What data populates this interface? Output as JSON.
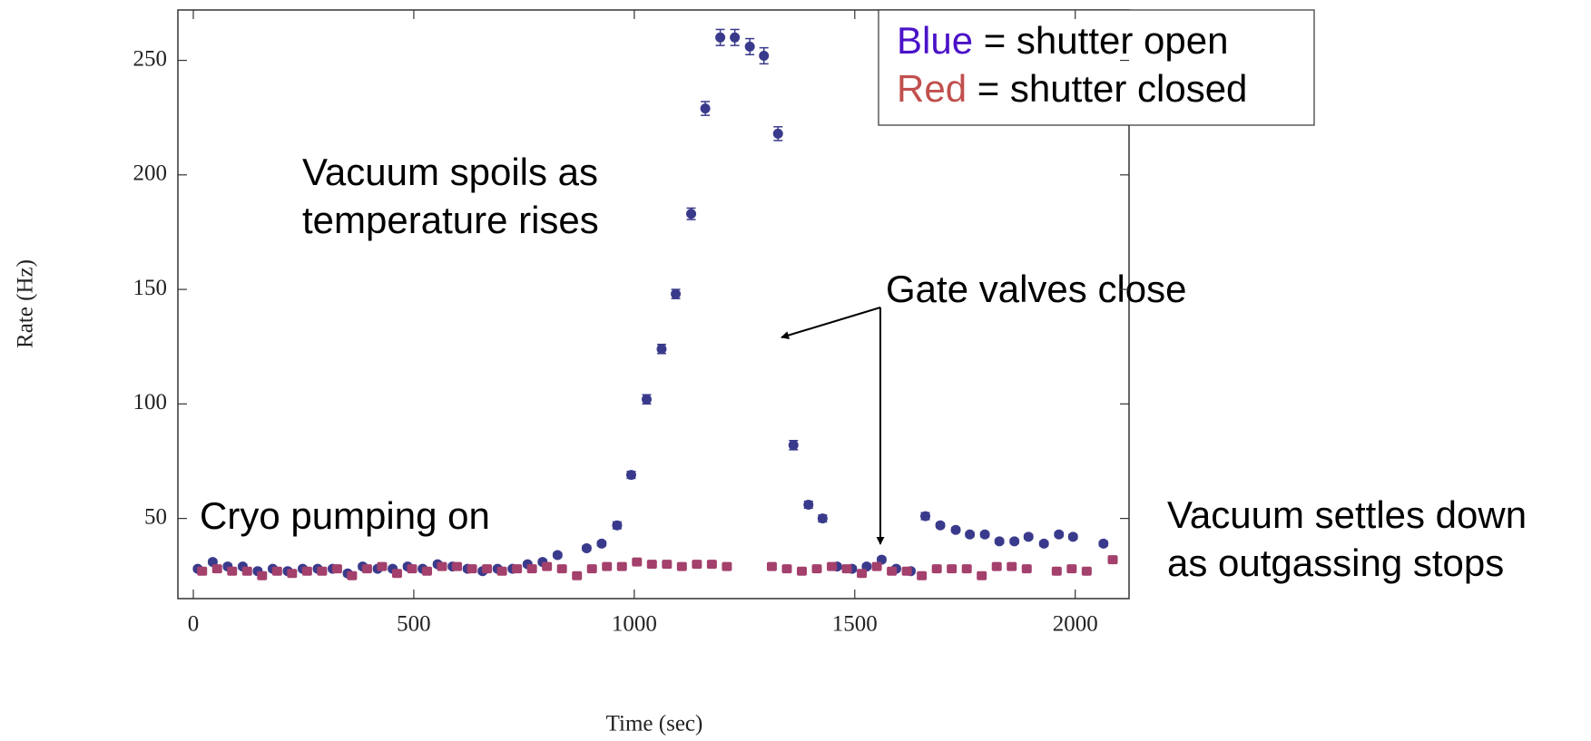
{
  "chart_data": {
    "type": "scatter",
    "xlabel": "Time (sec)",
    "ylabel": "Rate (Hz)",
    "xlim": [
      -35,
      2122
    ],
    "ylim": [
      15,
      272
    ],
    "xticks": [
      0,
      500,
      1000,
      1500,
      2000
    ],
    "yticks": [
      50,
      100,
      150,
      200,
      250
    ],
    "series": [
      {
        "name": "Blue",
        "description": "= shutter open",
        "color": "#3a3a8c",
        "legend_color": "#4a12c8",
        "marker": "circle",
        "x": [
          10,
          44,
          78,
          112,
          146,
          180,
          214,
          248,
          282,
          316,
          350,
          384,
          418,
          452,
          486,
          520,
          554,
          588,
          622,
          656,
          690,
          724,
          758,
          792,
          826,
          892,
          926,
          961,
          993,
          1028,
          1062,
          1094,
          1129,
          1161,
          1195,
          1228,
          1262,
          1294,
          1326,
          1361,
          1395,
          1427,
          1460,
          1494,
          1527,
          1561,
          1594,
          1627,
          1660,
          1694,
          1729,
          1761,
          1795,
          1828,
          1862,
          1894,
          1929,
          1963,
          1995,
          2064
        ],
        "values": [
          28,
          31,
          29,
          29,
          27,
          28,
          27,
          28,
          28,
          28,
          26,
          29,
          28,
          28,
          29,
          28,
          30,
          29,
          28,
          27,
          28,
          28,
          30,
          31,
          34,
          37,
          39,
          47,
          69,
          102,
          124,
          148,
          183,
          229,
          260,
          260,
          256,
          252,
          218,
          82,
          56,
          50,
          29,
          28,
          29,
          32,
          28,
          27,
          51,
          47,
          45,
          43,
          43,
          40,
          40,
          42,
          39,
          43,
          42,
          39
        ],
        "errors": [
          1,
          1,
          1,
          1,
          1,
          1,
          1,
          1,
          1,
          1,
          1,
          1,
          1,
          1,
          1,
          1,
          1,
          1,
          1,
          1,
          1,
          1,
          1,
          1,
          1,
          1,
          1,
          1.5,
          1.5,
          2,
          2,
          2,
          2.5,
          3,
          3.5,
          3.5,
          3.5,
          3.5,
          3,
          2,
          1.5,
          1.5,
          1,
          1,
          1,
          1,
          1,
          1,
          1.5,
          1,
          1,
          1,
          1,
          1,
          1,
          1,
          1,
          1,
          1,
          1
        ]
      },
      {
        "name": "Red",
        "description": "= shutter closed",
        "color": "#a3406c",
        "legend_color": "#c0504d",
        "marker": "square",
        "x": [
          20,
          54,
          88,
          122,
          156,
          190,
          224,
          258,
          292,
          326,
          360,
          394,
          428,
          462,
          496,
          530,
          564,
          598,
          632,
          666,
          700,
          734,
          768,
          802,
          836,
          870,
          904,
          938,
          972,
          1006,
          1040,
          1074,
          1108,
          1142,
          1176,
          1210,
          1312,
          1346,
          1380,
          1414,
          1448,
          1482,
          1516,
          1550,
          1584,
          1618,
          1652,
          1686,
          1720,
          1754,
          1788,
          1822,
          1856,
          1890,
          1958,
          1992,
          2026,
          2085
        ],
        "values": [
          27,
          28,
          27,
          27,
          25,
          27,
          26,
          27,
          27,
          28,
          25,
          28,
          29,
          26,
          28,
          27,
          29,
          29,
          28,
          28,
          27,
          28,
          28,
          29,
          28,
          25,
          28,
          29,
          29,
          31,
          30,
          30,
          29,
          30,
          30,
          29,
          29,
          28,
          27,
          28,
          29,
          28,
          26,
          29,
          27,
          27,
          25,
          28,
          28,
          28,
          25,
          29,
          29,
          28,
          27,
          28,
          27,
          32
        ]
      }
    ],
    "annotations": [
      {
        "lines": [
          "Vacuum spoils as",
          "temperature rises"
        ]
      },
      {
        "lines": [
          "Gate valves close"
        ]
      },
      {
        "lines": [
          "Cryo pumping on"
        ]
      },
      {
        "lines": [
          "Vacuum settles down",
          "as outgassing stops"
        ]
      }
    ]
  }
}
